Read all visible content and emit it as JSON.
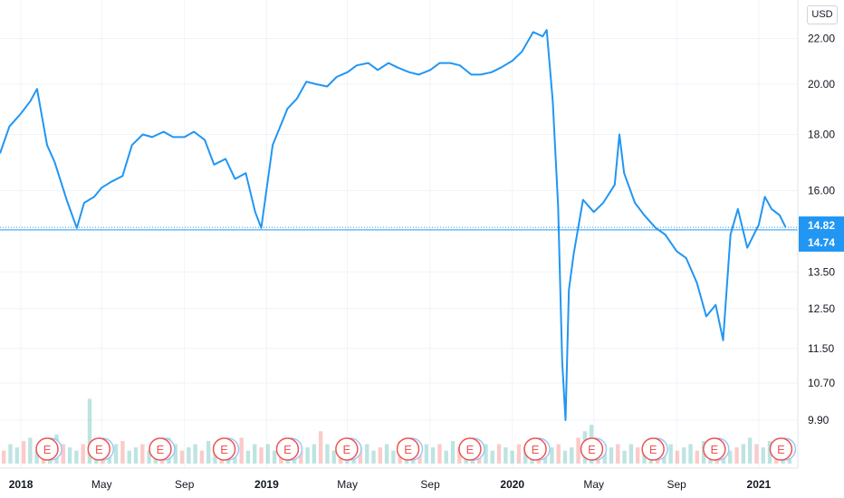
{
  "currency_button": "USD",
  "colors": {
    "line": "#2196f3",
    "grid": "#f0f3fa",
    "axis_border": "#e0e3eb",
    "last_price_badge": "#2196f3",
    "earnings_marker": "#ef5350",
    "volume_up": "#26a69a",
    "volume_down": "#ef5350"
  },
  "chart_data": {
    "type": "line",
    "title": "",
    "xlabel": "",
    "ylabel": "",
    "x_range": [
      "2017-12-01",
      "2021-02-28"
    ],
    "ylim": [
      9.3,
      23.4
    ],
    "y_scale": "log",
    "grid": true,
    "price_axis_ticks": [
      "22.00",
      "20.00",
      "18.00",
      "16.00",
      "13.50",
      "12.50",
      "11.50",
      "10.70",
      "9.90"
    ],
    "time_axis_ticks": [
      {
        "label": "2018",
        "date": "2018-01-01",
        "year": true
      },
      {
        "label": "May",
        "date": "2018-05-01",
        "year": false
      },
      {
        "label": "Sep",
        "date": "2018-09-01",
        "year": false
      },
      {
        "label": "2019",
        "date": "2019-01-01",
        "year": true
      },
      {
        "label": "May",
        "date": "2019-05-01",
        "year": false
      },
      {
        "label": "Sep",
        "date": "2019-09-01",
        "year": false
      },
      {
        "label": "2020",
        "date": "2020-01-01",
        "year": true
      },
      {
        "label": "May",
        "date": "2020-05-01",
        "year": false
      },
      {
        "label": "Sep",
        "date": "2020-09-01",
        "year": false
      },
      {
        "label": "2021",
        "date": "2021-01-01",
        "year": true
      }
    ],
    "price_badges": [
      "14.82",
      "14.74"
    ],
    "series": [
      {
        "x": [
          "2017-12-01",
          "2017-12-15",
          "2018-01-01",
          "2018-01-15",
          "2018-01-25",
          "2018-02-09",
          "2018-02-20",
          "2018-03-10",
          "2018-03-25",
          "2018-04-05",
          "2018-04-20",
          "2018-05-01",
          "2018-05-15",
          "2018-06-01",
          "2018-06-15",
          "2018-07-01",
          "2018-07-15",
          "2018-08-01",
          "2018-08-15",
          "2018-09-01",
          "2018-09-15",
          "2018-10-01",
          "2018-10-15",
          "2018-11-01",
          "2018-11-15",
          "2018-12-01",
          "2018-12-15",
          "2018-12-24",
          "2019-01-10",
          "2019-02-01",
          "2019-02-15",
          "2019-03-01",
          "2019-03-15",
          "2019-04-01",
          "2019-04-15",
          "2019-05-01",
          "2019-05-15",
          "2019-06-01",
          "2019-06-15",
          "2019-07-01",
          "2019-07-15",
          "2019-08-01",
          "2019-08-15",
          "2019-09-01",
          "2019-09-15",
          "2019-10-01",
          "2019-10-15",
          "2019-11-01",
          "2019-11-15",
          "2019-12-01",
          "2019-12-15",
          "2020-01-01",
          "2020-01-15",
          "2020-02-01",
          "2020-02-15",
          "2020-02-21",
          "2020-03-01",
          "2020-03-09",
          "2020-03-15",
          "2020-03-20",
          "2020-03-25",
          "2020-04-01",
          "2020-04-15",
          "2020-05-01",
          "2020-05-15",
          "2020-06-01",
          "2020-06-08",
          "2020-06-15",
          "2020-07-01",
          "2020-07-15",
          "2020-08-01",
          "2020-08-15",
          "2020-09-01",
          "2020-09-15",
          "2020-10-01",
          "2020-10-15",
          "2020-10-29",
          "2020-11-09",
          "2020-11-20",
          "2020-12-01",
          "2020-12-15",
          "2021-01-01",
          "2021-01-10",
          "2021-01-20",
          "2021-02-01",
          "2021-02-10"
        ],
        "values": [
          17.3,
          18.3,
          18.8,
          19.3,
          19.8,
          17.6,
          17.0,
          15.7,
          14.8,
          15.6,
          15.8,
          16.1,
          16.3,
          16.5,
          17.6,
          18.0,
          17.9,
          18.1,
          17.9,
          17.9,
          18.1,
          17.8,
          16.9,
          17.1,
          16.4,
          16.6,
          15.3,
          14.8,
          17.6,
          19.0,
          19.4,
          20.1,
          20.0,
          19.9,
          20.3,
          20.5,
          20.8,
          20.9,
          20.6,
          20.9,
          20.7,
          20.5,
          20.4,
          20.6,
          20.9,
          20.9,
          20.8,
          20.4,
          20.4,
          20.5,
          20.7,
          21.0,
          21.4,
          22.3,
          22.1,
          22.4,
          19.3,
          15.5,
          11.2,
          9.9,
          13.0,
          14.0,
          15.7,
          15.3,
          15.6,
          16.2,
          18.0,
          16.6,
          15.6,
          15.2,
          14.8,
          14.6,
          14.1,
          13.9,
          13.2,
          12.3,
          12.6,
          11.7,
          14.6,
          15.4,
          14.2,
          14.9,
          15.8,
          15.4,
          15.2,
          14.82
        ]
      }
    ],
    "volume_relative": [
      0.2,
      0.3,
      0.25,
      0.35,
      0.4,
      0.2,
      0.3,
      0.25,
      0.45,
      0.3,
      0.25,
      0.2,
      0.3,
      1.0,
      0.3,
      0.2,
      0.25,
      0.3,
      0.35,
      0.2,
      0.25,
      0.3,
      0.2,
      0.3,
      0.25,
      0.4,
      0.3,
      0.2,
      0.25,
      0.3,
      0.2,
      0.35,
      0.3,
      0.25,
      0.2,
      0.3,
      0.4,
      0.2,
      0.3,
      0.25,
      0.3,
      0.2,
      0.35,
      0.25,
      0.3,
      0.2,
      0.25,
      0.3,
      0.5,
      0.3,
      0.2,
      0.25,
      0.3,
      0.35,
      0.25,
      0.3,
      0.2,
      0.25,
      0.3,
      0.2,
      0.35,
      0.3,
      0.25,
      0.2,
      0.3,
      0.25,
      0.3,
      0.2,
      0.35,
      0.25,
      0.3,
      0.2,
      0.25,
      0.3,
      0.2,
      0.3,
      0.25,
      0.2,
      0.3,
      0.25,
      0.35,
      0.3,
      0.2,
      0.25,
      0.3,
      0.2,
      0.25,
      0.4,
      0.5,
      0.6,
      0.35,
      0.3,
      0.25,
      0.3,
      0.2,
      0.3,
      0.25,
      0.2,
      0.3,
      0.35,
      0.25,
      0.3,
      0.2,
      0.25,
      0.3,
      0.2,
      0.35,
      0.3,
      0.25,
      0.3,
      0.2,
      0.25,
      0.3,
      0.4,
      0.3,
      0.25,
      0.35,
      0.3,
      0.3,
      0.25
    ],
    "earnings_markers": [
      {
        "label": "E",
        "date": "2018-02-09"
      },
      {
        "label": "E",
        "date": "2018-04-27"
      },
      {
        "label": "E",
        "date": "2018-07-27"
      },
      {
        "label": "E",
        "date": "2018-10-30"
      },
      {
        "label": "E",
        "date": "2019-02-01"
      },
      {
        "label": "E",
        "date": "2019-04-30"
      },
      {
        "label": "E",
        "date": "2019-07-30"
      },
      {
        "label": "E",
        "date": "2019-10-30"
      },
      {
        "label": "E",
        "date": "2020-02-04"
      },
      {
        "label": "E",
        "date": "2020-04-28"
      },
      {
        "label": "E",
        "date": "2020-07-28"
      },
      {
        "label": "E",
        "date": "2020-10-27"
      },
      {
        "label": "E",
        "date": "2021-02-03"
      }
    ]
  }
}
